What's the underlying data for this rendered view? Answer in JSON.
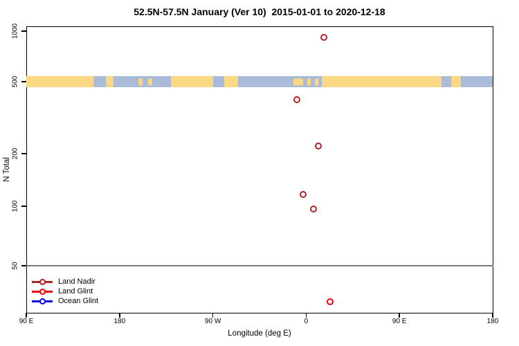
{
  "title": "52.5N-57.5N January (Ver 10)  2015-01-01 to 2020-12-18",
  "chart_data": {
    "type": "scatter",
    "title": "52.5N-57.5N January (Ver 10)  2015-01-01 to 2020-12-18",
    "xlabel": "Longitude (deg E)",
    "ylabel": "N Total",
    "y_scale": "log",
    "y_ticks": [
      1000,
      500,
      200,
      100,
      50
    ],
    "y_range_approx": [
      29,
      1070
    ],
    "x_tick_labels": [
      "90 E",
      "180",
      "90 W",
      "0",
      "90 E",
      "180"
    ],
    "x_axis_span_deg": [
      90,
      540
    ],
    "grid": "single horizontal gray line at N Total = 50",
    "gridline_y": 50,
    "legend_position": "bottom-left",
    "series": [
      {
        "name": "Land Nadir",
        "color": "#B22222",
        "points": [
          {
            "lon_deg_e": 17,
            "n_total": 918
          },
          {
            "lon_deg_e": -9,
            "n_total": 398
          },
          {
            "lon_deg_e": 12,
            "n_total": 220
          },
          {
            "lon_deg_e": -3,
            "n_total": 117
          },
          {
            "lon_deg_e": 7,
            "n_total": 97
          }
        ]
      },
      {
        "name": "Land Glint",
        "color": "#EE0000",
        "points": [
          {
            "lon_deg_e": 23,
            "n_total": 33
          }
        ]
      },
      {
        "name": "Ocean Glint",
        "color": "#0000EE",
        "points": []
      }
    ],
    "map_strip": {
      "description": "land/ocean mask band for 52.5N-57.5N drawn across the plot at N Total = 500",
      "at_n_total": 500,
      "land_color": "#FAD884",
      "ocean_color": "#A9BBD8",
      "land_segments_deg": [
        [
          90,
          155
        ],
        [
          166.8,
          174.1
        ],
        [
          229.5,
          270.3
        ],
        [
          281,
          294.3
        ],
        [
          375.1,
          490.6
        ],
        [
          500,
          509.3
        ]
      ],
      "land_speckles_deg": [
        [
          198.2,
          202.2
        ],
        [
          207.5,
          211.5
        ],
        [
          347.7,
          357.1
        ],
        [
          361,
          364.5
        ],
        [
          368.5,
          372
        ]
      ]
    }
  }
}
